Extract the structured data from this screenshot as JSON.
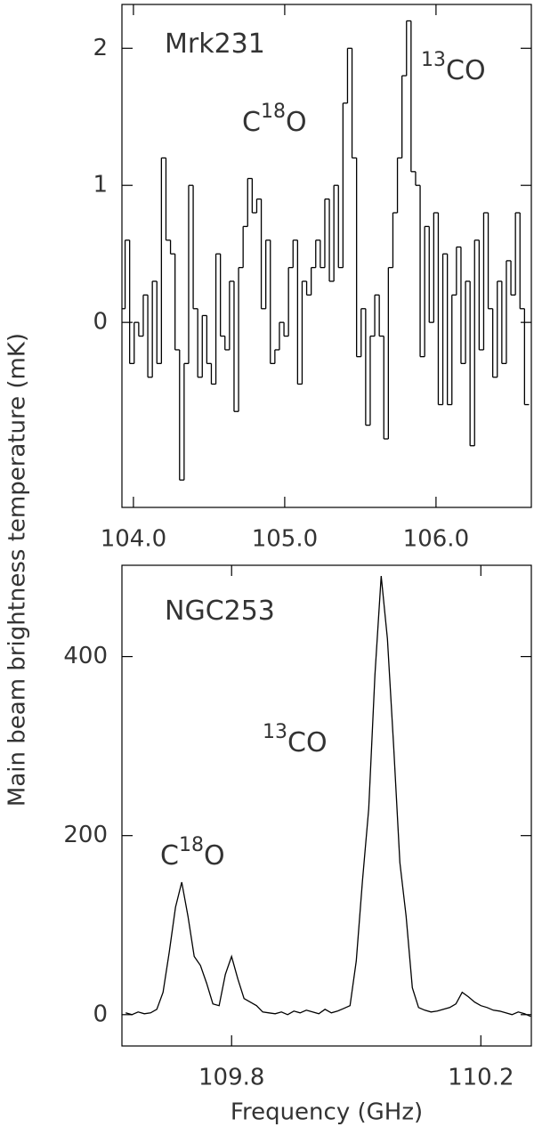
{
  "ylabel": "Main beam brightness temperature (mK)",
  "chart_data": [
    {
      "type": "step",
      "annotations": [
        {
          "segments": [
            {
              "text": "Mrk231"
            }
          ]
        },
        {
          "segments": [
            {
              "text": "C"
            },
            {
              "sup": "18"
            },
            {
              "text": "O"
            }
          ]
        },
        {
          "segments": [
            {
              "sup": "13"
            },
            {
              "text": "CO"
            }
          ]
        }
      ],
      "x": [
        103.93,
        103.96,
        103.99,
        104.02,
        104.05,
        104.08,
        104.11,
        104.14,
        104.17,
        104.2,
        104.23,
        104.26,
        104.29,
        104.32,
        104.35,
        104.38,
        104.41,
        104.44,
        104.47,
        104.5,
        104.53,
        104.56,
        104.59,
        104.62,
        104.65,
        104.68,
        104.71,
        104.74,
        104.77,
        104.8,
        104.83,
        104.86,
        104.89,
        104.92,
        104.95,
        104.98,
        105.01,
        105.04,
        105.07,
        105.1,
        105.13,
        105.16,
        105.19,
        105.22,
        105.25,
        105.28,
        105.31,
        105.34,
        105.37,
        105.4,
        105.43,
        105.46,
        105.49,
        105.52,
        105.55,
        105.58,
        105.61,
        105.64,
        105.67,
        105.7,
        105.73,
        105.76,
        105.79,
        105.82,
        105.85,
        105.88,
        105.91,
        105.94,
        105.97,
        106.0,
        106.03,
        106.06,
        106.09,
        106.12,
        106.15,
        106.18,
        106.21,
        106.24,
        106.27,
        106.3,
        106.33,
        106.36,
        106.39,
        106.42,
        106.45,
        106.48,
        106.51,
        106.54,
        106.57,
        106.6
      ],
      "values": [
        0.1,
        0.6,
        -0.3,
        0.0,
        -0.1,
        0.2,
        -0.4,
        0.3,
        -0.3,
        1.2,
        0.6,
        0.5,
        -0.2,
        -1.15,
        -0.3,
        1.0,
        0.1,
        -0.4,
        0.05,
        -0.3,
        -0.45,
        0.5,
        -0.1,
        -0.2,
        0.3,
        -0.65,
        0.4,
        0.7,
        1.05,
        0.8,
        0.9,
        0.1,
        0.6,
        -0.3,
        -0.2,
        0.0,
        -0.1,
        0.4,
        0.6,
        -0.45,
        0.3,
        0.2,
        0.4,
        0.6,
        0.4,
        0.9,
        0.3,
        1.0,
        0.4,
        1.6,
        2.0,
        1.2,
        -0.25,
        0.1,
        -0.75,
        -0.1,
        0.2,
        -0.1,
        -0.85,
        0.4,
        0.8,
        1.2,
        1.8,
        2.2,
        1.1,
        1.0,
        -0.25,
        0.7,
        0.0,
        0.8,
        -0.6,
        0.5,
        -0.6,
        0.2,
        0.55,
        -0.3,
        0.3,
        -0.9,
        0.6,
        -0.2,
        0.8,
        0.1,
        -0.4,
        0.3,
        -0.3,
        0.45,
        0.2,
        0.8,
        0.1,
        -0.6
      ],
      "color": "#000000",
      "xlim": [
        103.924,
        106.63
      ],
      "ylim": [
        -1.35,
        2.32
      ],
      "xticks": [
        {
          "value": 104,
          "label": "104.0"
        },
        {
          "value": 105,
          "label": "105.0"
        },
        {
          "value": 106,
          "label": "106.0"
        }
      ],
      "yticks": [
        0,
        1,
        2
      ]
    },
    {
      "type": "line",
      "xlabel": "Frequency (GHz)",
      "annotations": [
        {
          "segments": [
            {
              "text": "NGC253"
            }
          ]
        },
        {
          "segments": [
            {
              "sup": "13"
            },
            {
              "text": "CO"
            }
          ]
        },
        {
          "segments": [
            {
              "text": "C"
            },
            {
              "sup": "18"
            },
            {
              "text": "O"
            }
          ]
        }
      ],
      "x": [
        109.63,
        109.64,
        109.65,
        109.66,
        109.67,
        109.68,
        109.69,
        109.7,
        109.71,
        109.72,
        109.73,
        109.74,
        109.75,
        109.76,
        109.77,
        109.78,
        109.79,
        109.8,
        109.81,
        109.82,
        109.83,
        109.84,
        109.85,
        109.86,
        109.87,
        109.88,
        109.89,
        109.9,
        109.91,
        109.92,
        109.93,
        109.94,
        109.95,
        109.96,
        109.97,
        109.98,
        109.99,
        110.0,
        110.01,
        110.02,
        110.03,
        110.04,
        110.05,
        110.06,
        110.07,
        110.08,
        110.09,
        110.1,
        110.11,
        110.12,
        110.13,
        110.14,
        110.15,
        110.16,
        110.17,
        110.18,
        110.19,
        110.2,
        110.21,
        110.22,
        110.23,
        110.24,
        110.25,
        110.26,
        110.27,
        110.28
      ],
      "values": [
        2,
        0,
        3,
        1,
        2,
        6,
        25,
        70,
        120,
        148,
        110,
        65,
        55,
        35,
        12,
        10,
        45,
        65,
        40,
        18,
        14,
        10,
        3,
        2,
        1,
        3,
        0,
        4,
        2,
        5,
        3,
        1,
        6,
        2,
        4,
        7,
        10,
        60,
        150,
        230,
        380,
        490,
        420,
        300,
        170,
        110,
        30,
        8,
        5,
        3,
        4,
        6,
        8,
        12,
        25,
        20,
        14,
        10,
        8,
        5,
        4,
        2,
        0,
        3,
        1,
        -2
      ],
      "color": "#000000",
      "xlim": [
        109.624,
        110.281
      ],
      "ylim": [
        -35,
        502
      ],
      "xticks": [
        109.8,
        110.2
      ],
      "yticks": [
        0,
        200,
        400
      ]
    }
  ]
}
